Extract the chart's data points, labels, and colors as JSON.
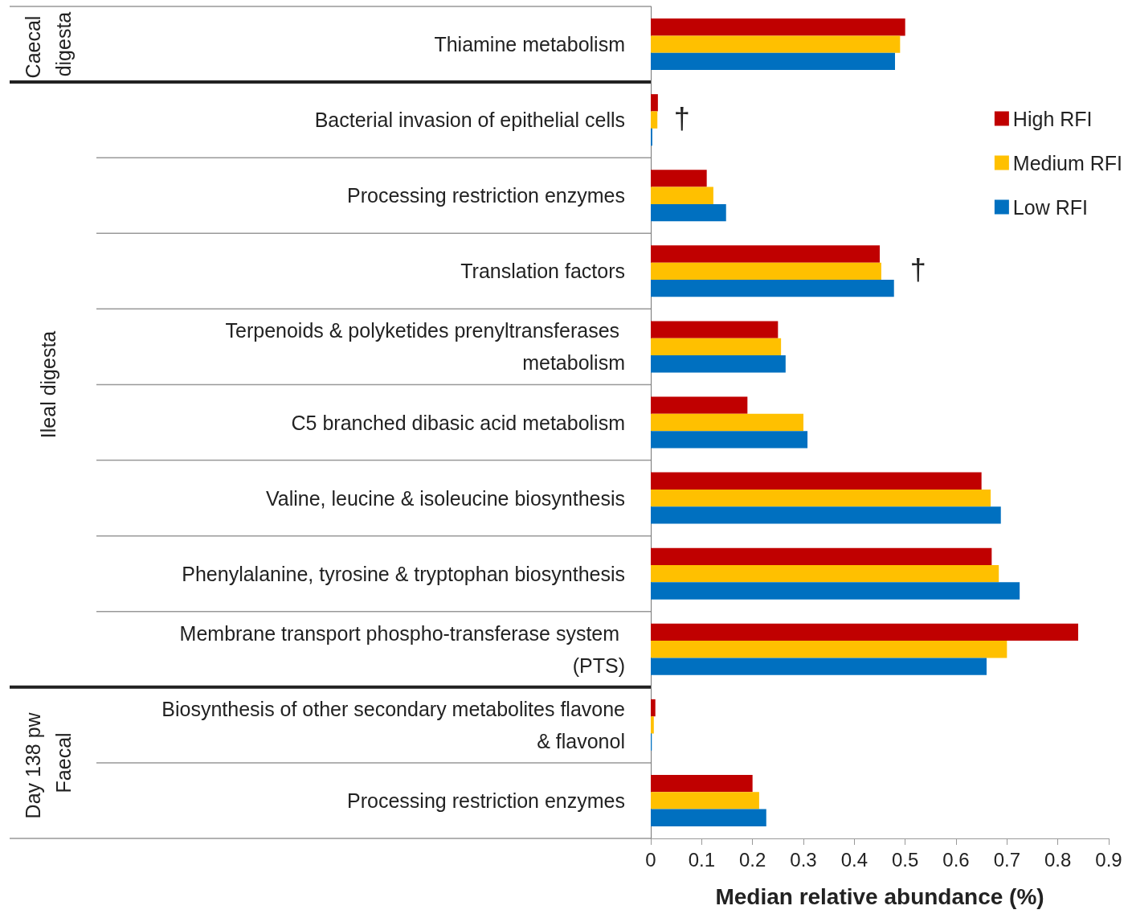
{
  "chart_data": {
    "type": "bar",
    "orientation": "horizontal",
    "xlabel": "Median relative abundance (%)",
    "categories": [
      "Thiamine metabolism",
      "Bacterial invasion of epithelial cells",
      "Processing restriction enzymes",
      "Translation factors",
      "Terpenoids & polyketides prenyltransferases metabolism",
      "C5 branched dibasic acid metabolism",
      "Valine, leucine & isoleucine biosynthesis",
      "Phenylalanine, tyrosine & tryptophan biosynthesis",
      "Membrane transport phospho-transferase system (PTS)",
      "Biosynthesis of other secondary metabolites flavone & flavonol",
      "Processing restriction enzymes"
    ],
    "series": [
      {
        "name": "High RFI",
        "color": "#c00000",
        "values": [
          0.5,
          0.014,
          0.11,
          0.45,
          0.25,
          0.19,
          0.65,
          0.67,
          0.84,
          0.009,
          0.2
        ]
      },
      {
        "name": "Medium RFI",
        "color": "#ffc000",
        "values": [
          0.49,
          0.013,
          0.123,
          0.453,
          0.256,
          0.3,
          0.668,
          0.684,
          0.7,
          0.006,
          0.213
        ]
      },
      {
        "name": "Low RFI",
        "color": "#0070c0",
        "values": [
          0.48,
          0.003,
          0.148,
          0.478,
          0.265,
          0.308,
          0.688,
          0.725,
          0.66,
          0.002,
          0.227
        ]
      }
    ],
    "xlim": [
      0,
      0.9
    ],
    "xticks": [
      0,
      0.1,
      0.2,
      0.3,
      0.4,
      0.5,
      0.6,
      0.7,
      0.8,
      0.9
    ],
    "grid": false,
    "legend": "top right",
    "annotations": [
      "Caecal digesta",
      "Ileal digesta",
      "Day 138 pw Faecal",
      "†",
      "†"
    ]
  }
}
